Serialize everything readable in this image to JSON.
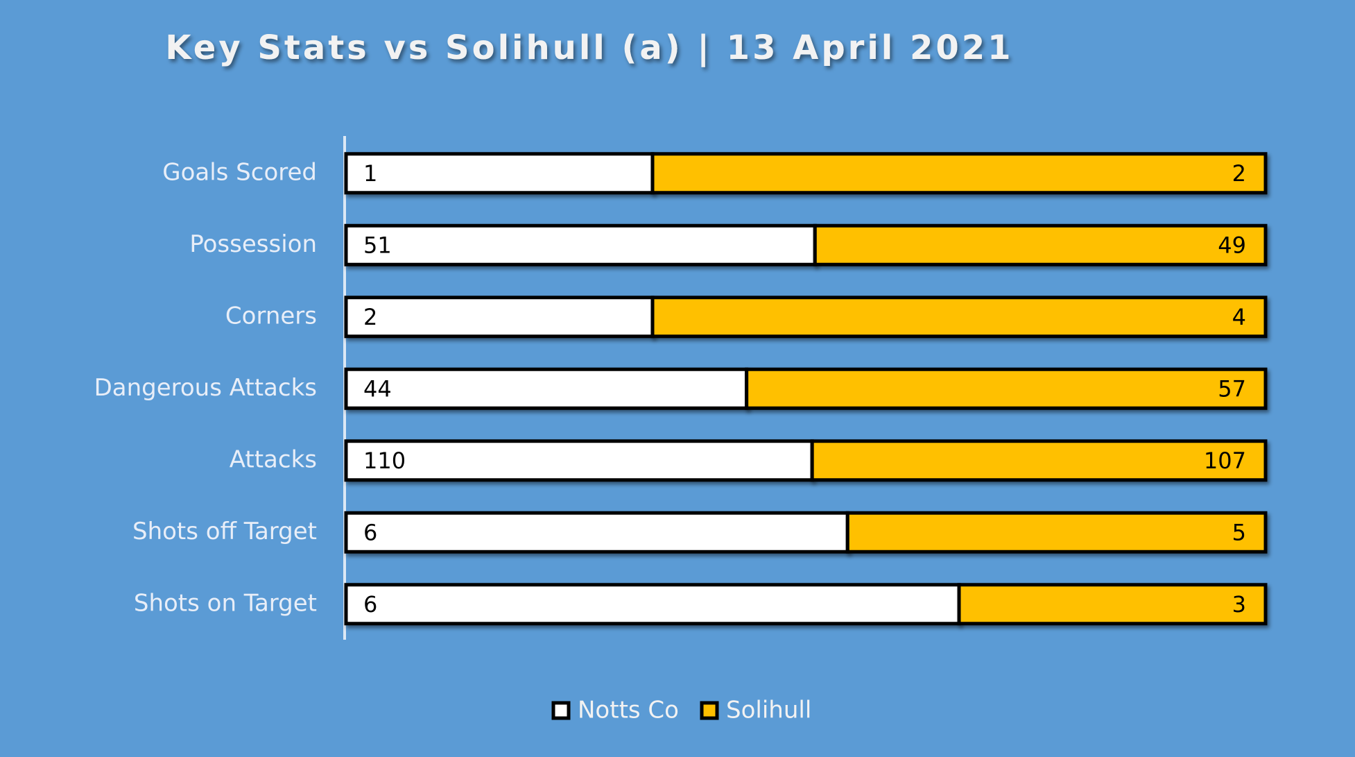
{
  "chart_data": {
    "type": "bar",
    "orientation": "horizontal",
    "stacking": "percent",
    "title": "Key Stats vs Solihull (a) | 13 April 2021",
    "categories": [
      "Goals Scored",
      "Possession",
      "Corners",
      "Dangerous Attacks",
      "Attacks",
      "Shots off Target",
      "Shots on Target"
    ],
    "series": [
      {
        "name": "Notts Co",
        "color": "#ffffff",
        "values": [
          1,
          51,
          2,
          44,
          110,
          6,
          6
        ]
      },
      {
        "name": "Solihull",
        "color": "#ffc000",
        "values": [
          2,
          49,
          4,
          57,
          107,
          5,
          3
        ]
      }
    ],
    "legend": "bottom"
  }
}
